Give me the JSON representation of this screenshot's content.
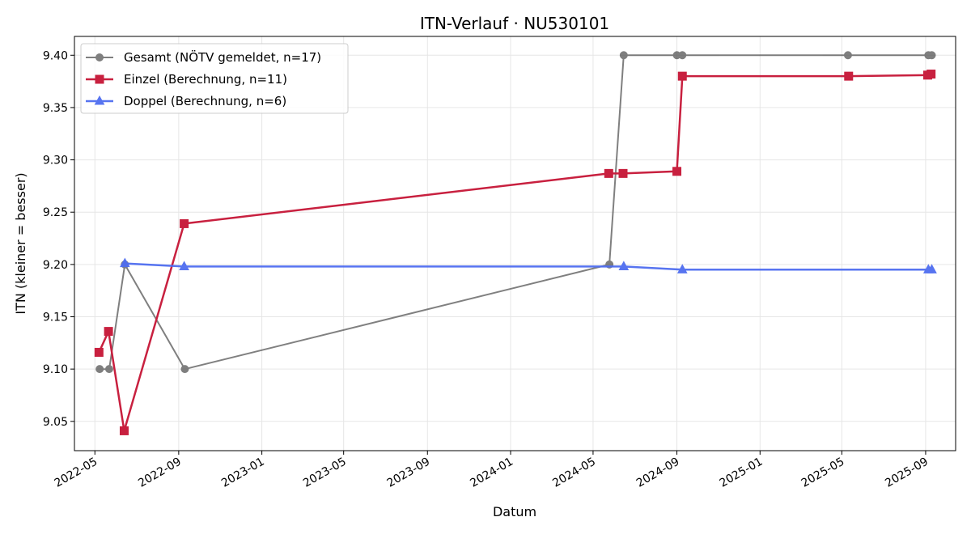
{
  "chart_data": {
    "type": "line",
    "title": "ITN-Verlauf · NU530101",
    "xlabel": "Datum",
    "ylabel": "ITN  (kleiner = besser)",
    "x_axis_type": "date",
    "xlim": [
      "2022-04-01",
      "2025-10-15"
    ],
    "ylim": [
      9.022,
      9.418
    ],
    "x_ticks": [
      "2022-05-01",
      "2022-09-01",
      "2023-01-01",
      "2023-05-01",
      "2023-09-01",
      "2024-01-01",
      "2024-05-01",
      "2024-09-01",
      "2025-01-01",
      "2025-05-01",
      "2025-09-01"
    ],
    "x_tick_labels": [
      "2022-05",
      "2022-09",
      "2023-01",
      "2023-05",
      "2023-09",
      "2024-01",
      "2024-05",
      "2024-09",
      "2025-01",
      "2025-05",
      "2025-09"
    ],
    "y_ticks": [
      9.05,
      9.1,
      9.15,
      9.2,
      9.25,
      9.3,
      9.35,
      9.4
    ],
    "y_tick_labels": [
      "9.05",
      "9.10",
      "9.15",
      "9.20",
      "9.25",
      "9.30",
      "9.35",
      "9.40"
    ],
    "grid": true,
    "legend_position": "top-left",
    "series": [
      {
        "name": "Gesamt (NÖTV gemeldet, n=17)",
        "color": "#555555",
        "marker": "circle",
        "points": [
          {
            "x": "2022-05-08",
            "y": 9.1
          },
          {
            "x": "2022-05-22",
            "y": 9.1
          },
          {
            "x": "2022-06-14",
            "y": 9.2
          },
          {
            "x": "2022-09-10",
            "y": 9.1
          },
          {
            "x": "2024-05-25",
            "y": 9.2
          },
          {
            "x": "2024-06-15",
            "y": 9.4
          },
          {
            "x": "2024-09-01",
            "y": 9.4
          },
          {
            "x": "2024-09-09",
            "y": 9.4
          },
          {
            "x": "2025-05-10",
            "y": 9.4
          },
          {
            "x": "2025-09-05",
            "y": 9.4
          },
          {
            "x": "2025-09-10",
            "y": 9.4
          }
        ]
      },
      {
        "name": "Einzel (Berechnung, n=11)",
        "color": "#c8203f",
        "marker": "square",
        "points": [
          {
            "x": "2022-05-07",
            "y": 9.116
          },
          {
            "x": "2022-05-21",
            "y": 9.136
          },
          {
            "x": "2022-06-13",
            "y": 9.041
          },
          {
            "x": "2022-09-09",
            "y": 9.239
          },
          {
            "x": "2024-05-24",
            "y": 9.287
          },
          {
            "x": "2024-06-14",
            "y": 9.287
          },
          {
            "x": "2024-09-01",
            "y": 9.289
          },
          {
            "x": "2024-09-09",
            "y": 9.38
          },
          {
            "x": "2025-05-11",
            "y": 9.38
          },
          {
            "x": "2025-09-04",
            "y": 9.381
          },
          {
            "x": "2025-09-09",
            "y": 9.382
          }
        ]
      },
      {
        "name": "Doppel (Berechnung, n=6)",
        "color": "#4f6df0",
        "marker": "triangle",
        "points": [
          {
            "x": "2022-06-14",
            "y": 9.201
          },
          {
            "x": "2022-09-09",
            "y": 9.198
          },
          {
            "x": "2024-06-15",
            "y": 9.198
          },
          {
            "x": "2024-09-09",
            "y": 9.195
          },
          {
            "x": "2025-09-05",
            "y": 9.195
          },
          {
            "x": "2025-09-10",
            "y": 9.195
          }
        ]
      }
    ]
  }
}
